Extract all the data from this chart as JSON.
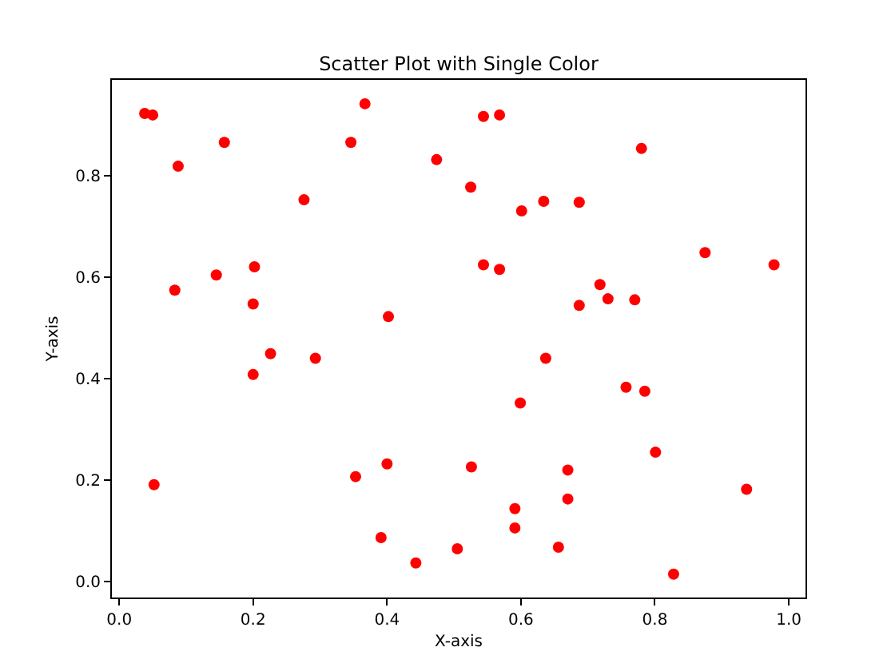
{
  "chart_data": {
    "type": "scatter",
    "title": "Scatter Plot with Single Color",
    "xlabel": "X-axis",
    "ylabel": "Y-axis",
    "series": [
      {
        "color": "#ff0000",
        "x": [
          0.038,
          0.05,
          0.367,
          0.157,
          0.346,
          0.088,
          0.474,
          0.276,
          0.145,
          0.202,
          0.083,
          0.2,
          0.402,
          0.544,
          0.568,
          0.78,
          0.525,
          0.601,
          0.634,
          0.687,
          0.875,
          0.978,
          0.544,
          0.568,
          0.718,
          0.73,
          0.77,
          0.687,
          0.2,
          0.226,
          0.293,
          0.052,
          0.353,
          0.4,
          0.391,
          0.443,
          0.505,
          0.637,
          0.757,
          0.785,
          0.599,
          0.801,
          0.526,
          0.67,
          0.937,
          0.67,
          0.591,
          0.591,
          0.656,
          0.828
        ],
        "values": [
          0.922,
          0.919,
          0.941,
          0.865,
          0.865,
          0.818,
          0.831,
          0.752,
          0.604,
          0.62,
          0.574,
          0.547,
          0.522,
          0.916,
          0.919,
          0.853,
          0.777,
          0.73,
          0.749,
          0.747,
          0.648,
          0.624,
          0.624,
          0.615,
          0.585,
          0.557,
          0.555,
          0.544,
          0.408,
          0.449,
          0.44,
          0.191,
          0.207,
          0.232,
          0.087,
          0.037,
          0.065,
          0.44,
          0.383,
          0.375,
          0.352,
          0.255,
          0.226,
          0.22,
          0.182,
          0.163,
          0.144,
          0.106,
          0.068,
          0.015
        ]
      }
    ],
    "xlim": [
      -0.011,
      1.025
    ],
    "ylim": [
      -0.031,
      0.988
    ],
    "xticks": [
      {
        "value": 0,
        "label": "0.0"
      },
      {
        "value": 0.2,
        "label": "0.2"
      },
      {
        "value": 0.4,
        "label": "0.4"
      },
      {
        "value": 0.6,
        "label": "0.6"
      },
      {
        "value": 0.8,
        "label": "0.8"
      },
      {
        "value": 1.0,
        "label": "1.0"
      }
    ],
    "yticks": [
      {
        "value": 0,
        "label": "0.0"
      },
      {
        "value": 0.2,
        "label": "0.2"
      },
      {
        "value": 0.4,
        "label": "0.4"
      },
      {
        "value": 0.6,
        "label": "0.6"
      },
      {
        "value": 0.8,
        "label": "0.8"
      }
    ],
    "marker": "circle",
    "grid": false
  }
}
